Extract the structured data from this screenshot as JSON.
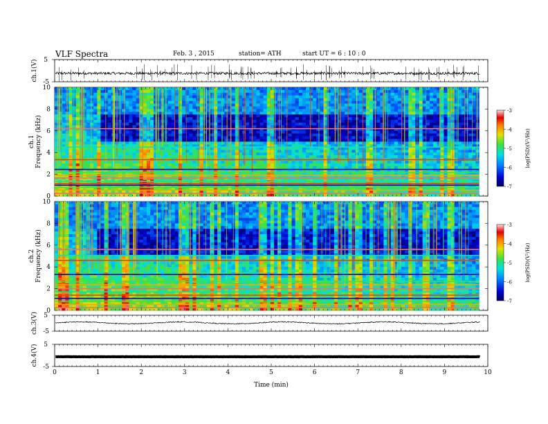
{
  "header": {
    "title": "VLF  Spectra",
    "date": "Feb. 3  , 2015",
    "station": "station= ATH",
    "start": "start  UT  =   6  : 10 : 0"
  },
  "chart_data": [
    {
      "type": "line",
      "panel": "ch1-waveform",
      "ylabel": "ch.1(V)",
      "ylim": [
        -5,
        5
      ],
      "yticklabels": [
        "5",
        "-5"
      ],
      "series": [
        {
          "name": "ch.1",
          "baseline": -1.2,
          "noise": 0.6,
          "spikes": true
        }
      ]
    },
    {
      "type": "heatmap",
      "panel": "ch1-spectrogram",
      "ylabel_top": "ch.1",
      "ylabel": "Frequency  (kHz)",
      "ylim": [
        0,
        10
      ],
      "yticks": [
        "0",
        "2",
        "4",
        "6",
        "8",
        "10"
      ],
      "xlim": [
        0,
        10
      ],
      "data_xlim": [
        0,
        9.8
      ],
      "colorbar": {
        "label": "log(PSD)(V²/Hz)",
        "range": [
          -7,
          -3
        ],
        "ticks": [
          "-3",
          "-4",
          "-5",
          "-6",
          "-7"
        ]
      },
      "lines_khz": [
        0.25,
        0.55,
        0.8,
        1.0,
        1.15,
        1.35,
        1.65,
        1.9,
        2.15,
        2.45,
        3.35,
        4.5,
        6.2
      ]
    },
    {
      "type": "heatmap",
      "panel": "ch2-spectrogram",
      "ylabel_top": "ch.2",
      "ylabel": "Frequency  (kHz)",
      "ylim": [
        0,
        10
      ],
      "yticks": [
        "0",
        "2",
        "4",
        "6",
        "8",
        "10"
      ],
      "xlim": [
        0,
        10
      ],
      "data_xlim": [
        0,
        9.8
      ],
      "colorbar": {
        "label": "log(PSD)(V²/Hz)",
        "range": [
          -7,
          -3
        ],
        "ticks": [
          "-3",
          "-4",
          "-5",
          "-6",
          "-7"
        ]
      },
      "lines_khz": [
        0.25,
        0.55,
        0.85,
        1.1,
        1.4,
        1.7,
        2.0,
        2.35,
        2.65,
        3.3,
        4.6,
        5.05,
        5.6
      ]
    },
    {
      "type": "line",
      "panel": "ch3-waveform",
      "ylabel": "ch.3(V)",
      "ylim": [
        -5,
        5
      ],
      "yticklabels": [
        "5",
        "-5"
      ],
      "series": [
        {
          "name": "ch.3",
          "baseline": 0.2,
          "noise": 0.5,
          "spikes": false
        }
      ]
    },
    {
      "type": "line",
      "panel": "ch4-waveform",
      "ylabel": "ch.4(V)",
      "ylim": [
        -5,
        5
      ],
      "yticklabels": [
        "5",
        "-5"
      ],
      "series": [
        {
          "name": "ch.4",
          "baseline": -0.6,
          "noise": 0.05,
          "spikes": false
        }
      ]
    }
  ],
  "xaxis": {
    "label": "Time  (min)",
    "xlim": [
      0,
      10
    ],
    "ticks": [
      "0",
      "1",
      "2",
      "3",
      "4",
      "5",
      "6",
      "7",
      "8",
      "9",
      "10"
    ]
  }
}
